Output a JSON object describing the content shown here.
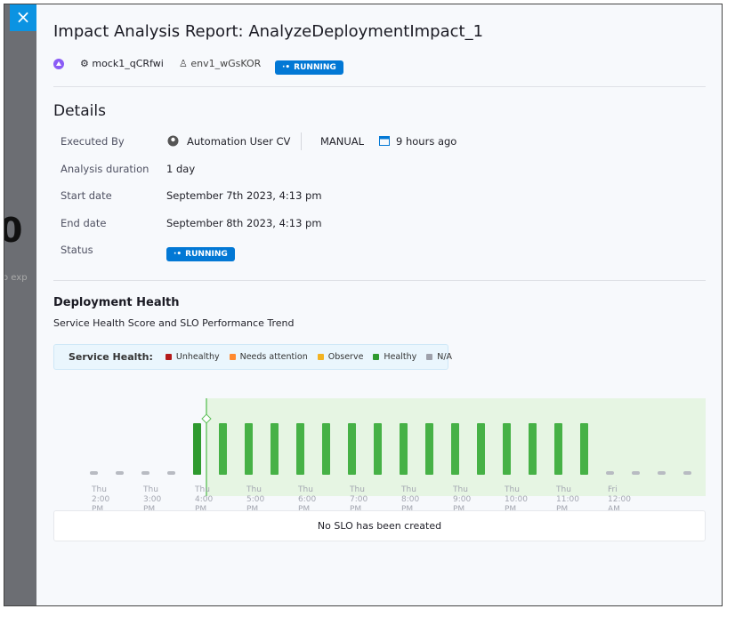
{
  "close_button": "×",
  "background_fragments": [
    "0",
    "o exp"
  ],
  "header": {
    "title": "Impact Analysis Report: AnalyzeDeploymentImpact_1",
    "service": "mock1_qCRfwi",
    "environment": "env1_wGsKOR",
    "status": "RUNNING"
  },
  "details": {
    "heading": "Details",
    "rows": [
      [
        "Executed By",
        "Automation User CV"
      ],
      [
        "Analysis duration",
        "1 day"
      ],
      [
        "Start date",
        "September 7th 2023, 4:13 pm"
      ],
      [
        "End date",
        "September 8th 2023, 4:13 pm"
      ],
      [
        "Status",
        "RUNNING"
      ]
    ],
    "trigger": "MANUAL",
    "time_ago": "9 hours ago"
  },
  "deployment_health": {
    "heading": "Deployment Health",
    "subtitle": "Service Health Score and SLO Performance Trend",
    "legend_title": "Service Health:",
    "legend": [
      {
        "name": "Unhealthy",
        "color": "#b41b1b"
      },
      {
        "name": "Needs attention",
        "color": "#ff8a30"
      },
      {
        "name": "Observe",
        "color": "#f3b322"
      },
      {
        "name": "Healthy",
        "color": "#2f9a2f"
      },
      {
        "name": "N/A",
        "color": "#9ea1ab"
      }
    ],
    "chart_data": {
      "type": "bar",
      "categories": [
        "Thu 2:00 PM",
        null,
        "Thu 3:00 PM",
        null,
        "Thu 4:00 PM",
        null,
        "Thu 5:00 PM",
        null,
        "Thu 6:00 PM",
        null,
        "Thu 7:00 PM",
        null,
        "Thu 8:00 PM",
        null,
        "Thu 9:00 PM",
        null,
        "Thu 10:00 PM",
        null,
        "Thu 11:00 PM",
        null,
        "Fri 12:00 AM",
        null,
        null,
        null
      ],
      "values": [
        0,
        0,
        0,
        0,
        100,
        100,
        100,
        100,
        100,
        100,
        100,
        100,
        100,
        100,
        100,
        100,
        100,
        100,
        100,
        100,
        0,
        0,
        0,
        0
      ],
      "colors": [
        "#b8bbc2",
        "#b8bbc2",
        "#b8bbc2",
        "#b8bbc2",
        "#2f9a2f",
        "#46b146",
        "#46b146",
        "#46b146",
        "#46b146",
        "#46b146",
        "#46b146",
        "#46b146",
        "#46b146",
        "#46b146",
        "#46b146",
        "#46b146",
        "#46b146",
        "#46b146",
        "#46b146",
        "#46b146",
        "#b8bbc2",
        "#b8bbc2",
        "#b8bbc2",
        "#b8bbc2"
      ]
    },
    "slo_message": "No SLO has been created"
  }
}
